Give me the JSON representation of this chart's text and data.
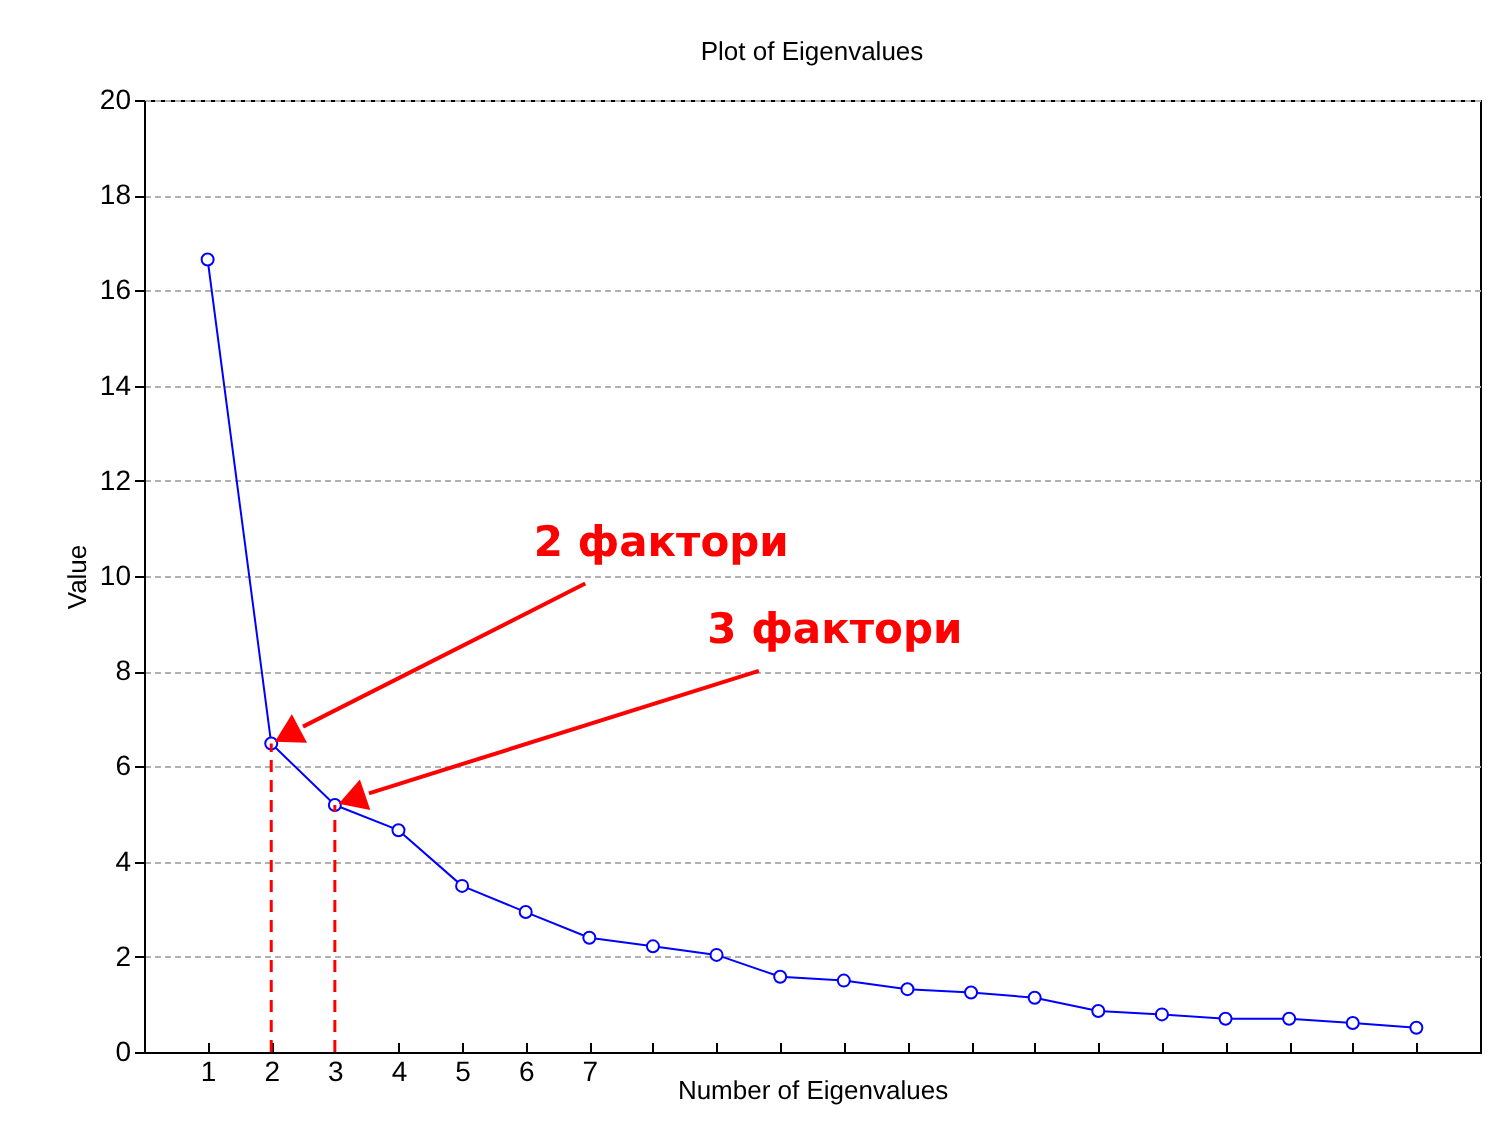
{
  "chart_data": {
    "type": "line",
    "title": "Plot of Eigenvalues",
    "xlabel": "Number of Eigenvalues",
    "ylabel": "Value",
    "categories": [
      "1",
      "2",
      "3",
      "4",
      "5",
      "6",
      "7",
      null,
      null,
      null,
      null,
      null,
      null,
      null,
      null,
      null,
      null,
      null,
      null,
      null
    ],
    "series": [
      {
        "color": "#0000ff",
        "values": [
          16.65,
          6.48,
          5.19,
          4.66,
          3.49,
          2.94,
          2.4,
          2.22,
          2.04,
          1.58,
          1.5,
          1.32,
          1.25,
          1.14,
          0.86,
          0.79,
          0.7,
          0.7,
          0.61,
          0.51
        ]
      }
    ],
    "ylim": [
      0,
      20
    ],
    "yticks": [
      0,
      2,
      4,
      6,
      8,
      10,
      12,
      14,
      16,
      18,
      20
    ],
    "grid": "y",
    "marker": "circle",
    "line_style": "solid",
    "ref_lines": [
      {
        "axis": "x",
        "value": "2",
        "color": "#ff0000",
        "line_style": "dashed"
      },
      {
        "axis": "x",
        "value": "3",
        "color": "#ff0000",
        "line_style": "dashed"
      }
    ],
    "annotations": [
      "2 фактори",
      "3 фактори"
    ]
  }
}
